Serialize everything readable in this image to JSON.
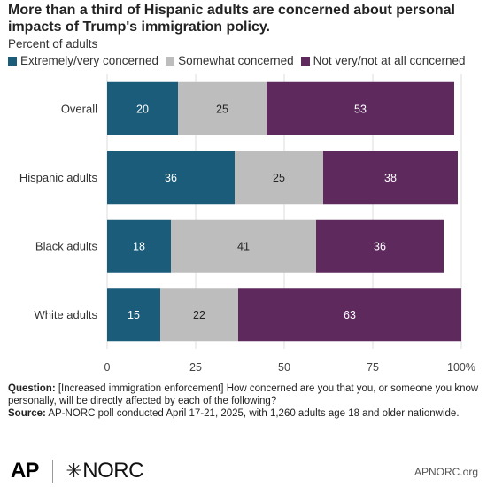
{
  "title": "More than a third of Hispanic adults are concerned about personal impacts of Trump's immigration policy.",
  "subtitle": "Percent of adults",
  "legend": [
    {
      "label": "Extremely/very concerned",
      "color": "#1a5c7a"
    },
    {
      "label": "Somewhat concerned",
      "color": "#bdbdbd"
    },
    {
      "label": "Not very/not at all concerned",
      "color": "#5e2a5e"
    }
  ],
  "chart_data": {
    "type": "bar",
    "orientation": "horizontal",
    "stacked": true,
    "categories": [
      "Overall",
      "Hispanic adults",
      "Black adults",
      "White adults"
    ],
    "series": [
      {
        "name": "Extremely/very concerned",
        "values": [
          20,
          36,
          18,
          15
        ],
        "color": "#1a5c7a",
        "label_color": "#ffffff"
      },
      {
        "name": "Somewhat concerned",
        "values": [
          25,
          25,
          41,
          22
        ],
        "color": "#bdbdbd",
        "label_color": "#222222"
      },
      {
        "name": "Not very/not at all concerned",
        "values": [
          53,
          38,
          36,
          63
        ],
        "color": "#5e2a5e",
        "label_color": "#ffffff"
      }
    ],
    "xlim": [
      0,
      100
    ],
    "xticks": [
      "0",
      "25",
      "50",
      "75",
      "100%"
    ],
    "grid": true
  },
  "notes": {
    "question_label": "Question:",
    "question_text": " [Increased immigration enforcement] How concerned are you that you, or someone you know personally, will be directly affected by each of the following?",
    "source_label": "Source:",
    "source_text": " AP-NORC poll conducted April 17-21, 2025, with 1,260 adults age 18 and older nationwide."
  },
  "logos": {
    "ap": "AP",
    "norc": "NORC",
    "norc_mark": "✳"
  },
  "site": "APNORC.org"
}
